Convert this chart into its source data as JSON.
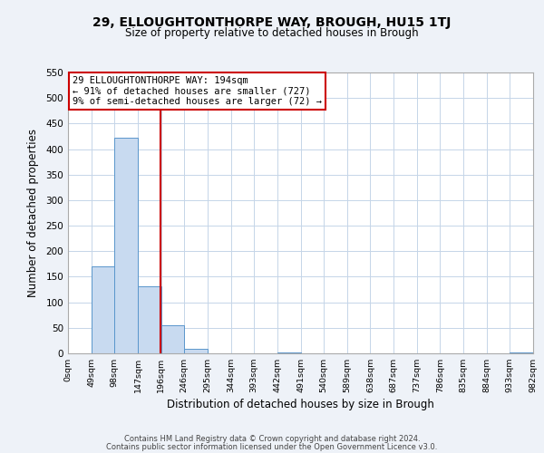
{
  "title_line1": "29, ELLOUGHTONTHORPE WAY, BROUGH, HU15 1TJ",
  "title_line2": "Size of property relative to detached houses in Brough",
  "xlabel": "Distribution of detached houses by size in Brough",
  "ylabel": "Number of detached properties",
  "bin_edges": [
    0,
    49,
    98,
    147,
    196,
    245,
    294,
    343,
    392,
    441,
    490,
    539,
    588,
    637,
    686,
    735,
    784,
    833,
    882,
    931,
    980
  ],
  "bin_labels": [
    "0sqm",
    "49sqm",
    "98sqm",
    "147sqm",
    "196sqm",
    "246sqm",
    "295sqm",
    "344sqm",
    "393sqm",
    "442sqm",
    "491sqm",
    "540sqm",
    "589sqm",
    "638sqm",
    "687sqm",
    "737sqm",
    "786sqm",
    "835sqm",
    "884sqm",
    "933sqm",
    "982sqm"
  ],
  "counts": [
    0,
    170,
    422,
    131,
    55,
    8,
    0,
    0,
    0,
    2,
    0,
    0,
    0,
    0,
    0,
    0,
    0,
    0,
    0,
    2
  ],
  "bar_color": "#c8daf0",
  "bar_edge_color": "#5a96cc",
  "property_line_x": 194,
  "property_line_color": "#cc0000",
  "ylim": [
    0,
    550
  ],
  "yticks": [
    0,
    50,
    100,
    150,
    200,
    250,
    300,
    350,
    400,
    450,
    500,
    550
  ],
  "annotation_text": "29 ELLOUGHTONTHORPE WAY: 194sqm\n← 91% of detached houses are smaller (727)\n9% of semi-detached houses are larger (72) →",
  "annotation_box_color": "#ffffff",
  "annotation_box_edge_color": "#cc0000",
  "footnote1": "Contains HM Land Registry data © Crown copyright and database right 2024.",
  "footnote2": "Contains public sector information licensed under the Open Government Licence v3.0.",
  "bg_color": "#eef2f8",
  "plot_bg_color": "#ffffff",
  "grid_color": "#c5d5e8"
}
